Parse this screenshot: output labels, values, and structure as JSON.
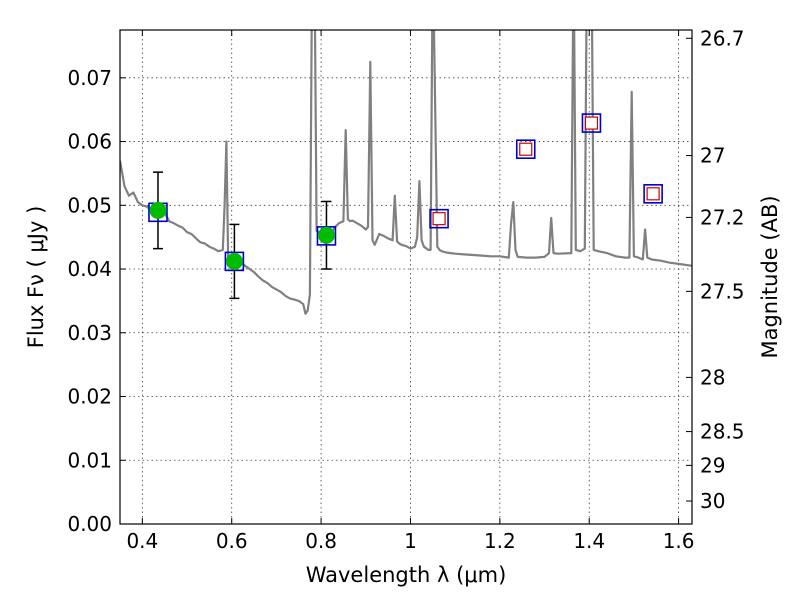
{
  "chart_data": {
    "type": "line",
    "title": "",
    "xlabel": "Wavelength  λ (μm)",
    "ylabel": "Flux  Fν  ( μJy )",
    "ylabel_right": "Magnitude (AB)",
    "xlim": [
      0.35,
      1.63
    ],
    "ylim": [
      0.0,
      0.0775
    ],
    "grid": true,
    "x_ticks": [
      0.4,
      0.6,
      0.8,
      1.0,
      1.2,
      1.4,
      1.6
    ],
    "x_tick_labels": [
      "0.4",
      "0.6",
      "0.8",
      "1",
      "1.2",
      "1.4",
      "1.6"
    ],
    "y_ticks": [
      0.0,
      0.01,
      0.02,
      0.03,
      0.04,
      0.05,
      0.06,
      0.07
    ],
    "y_tick_labels": [
      "0.00",
      "0.01",
      "0.02",
      "0.03",
      "0.04",
      "0.05",
      "0.06",
      "0.07"
    ],
    "right_axis_ticks": [
      {
        "label": "26.7",
        "flux": 0.0762
      },
      {
        "label": "27",
        "flux": 0.0578
      },
      {
        "label": "27.2",
        "flux": 0.0481
      },
      {
        "label": "27.5",
        "flux": 0.0365
      },
      {
        "label": "28",
        "flux": 0.023
      },
      {
        "label": "28.5",
        "flux": 0.0145
      },
      {
        "label": "29",
        "flux": 0.0092
      },
      {
        "label": "30",
        "flux": 0.0036
      }
    ],
    "colors": {
      "model": "#808080",
      "observed": "#00bb00",
      "model_box": "#0000cc",
      "upper_point": "#cc0000",
      "errorbar": "#000000"
    },
    "series": [
      {
        "kind": "line",
        "x": [
          0.35,
          0.36,
          0.37,
          0.38,
          0.39,
          0.4,
          0.41,
          0.42,
          0.43,
          0.44,
          0.45,
          0.46,
          0.47,
          0.48,
          0.49,
          0.5,
          0.51,
          0.52,
          0.53,
          0.54,
          0.55,
          0.56,
          0.57,
          0.58,
          0.584,
          0.588,
          0.592,
          0.6,
          0.61,
          0.62,
          0.63,
          0.64,
          0.65,
          0.66,
          0.67,
          0.68,
          0.69,
          0.7,
          0.71,
          0.72,
          0.73,
          0.74,
          0.75,
          0.76,
          0.765,
          0.77,
          0.775,
          0.78,
          0.785,
          0.79,
          0.8,
          0.81,
          0.82,
          0.83,
          0.84,
          0.85,
          0.855,
          0.86,
          0.865,
          0.87,
          0.88,
          0.89,
          0.9,
          0.905,
          0.91,
          0.915,
          0.92,
          0.93,
          0.94,
          0.95,
          0.96,
          0.965,
          0.97,
          0.975,
          0.98,
          0.99,
          1.0,
          1.01,
          1.015,
          1.02,
          1.025,
          1.03,
          1.04,
          1.045,
          1.05,
          1.06,
          1.065,
          1.07,
          1.08,
          1.09,
          1.1,
          1.12,
          1.14,
          1.16,
          1.18,
          1.2,
          1.22,
          1.225,
          1.23,
          1.235,
          1.24,
          1.26,
          1.28,
          1.3,
          1.31,
          1.315,
          1.32,
          1.33,
          1.36,
          1.365,
          1.37,
          1.38,
          1.39,
          1.395,
          1.4,
          1.405,
          1.41,
          1.42,
          1.44,
          1.46,
          1.48,
          1.49,
          1.495,
          1.5,
          1.51,
          1.52,
          1.525,
          1.53,
          1.54,
          1.56,
          1.58,
          1.6,
          1.63
        ],
        "y": [
          0.057,
          0.053,
          0.0515,
          0.052,
          0.0505,
          0.05,
          0.0498,
          0.0492,
          0.0495,
          0.0487,
          0.0488,
          0.0475,
          0.0472,
          0.0468,
          0.0465,
          0.0458,
          0.0455,
          0.0448,
          0.0442,
          0.044,
          0.0435,
          0.0432,
          0.0428,
          0.043,
          0.05,
          0.06,
          0.042,
          0.0415,
          0.0412,
          0.041,
          0.0405,
          0.04,
          0.0395,
          0.0388,
          0.0382,
          0.0378,
          0.0372,
          0.0368,
          0.0364,
          0.0358,
          0.0354,
          0.0352,
          0.035,
          0.0345,
          0.033,
          0.0335,
          0.036,
          0.09,
          0.09,
          0.046,
          0.0455,
          0.044,
          0.0452,
          0.0465,
          0.0472,
          0.0475,
          0.0618,
          0.0478,
          0.0475,
          0.0476,
          0.0472,
          0.0468,
          0.0462,
          0.0466,
          0.0725,
          0.0445,
          0.0438,
          0.0455,
          0.0452,
          0.0448,
          0.0445,
          0.0515,
          0.0443,
          0.044,
          0.0438,
          0.0436,
          0.0432,
          0.0435,
          0.045,
          0.0538,
          0.0445,
          0.0435,
          0.043,
          0.043,
          0.09,
          0.0435,
          0.043,
          0.0428,
          0.0426,
          0.0425,
          0.0424,
          0.0423,
          0.0422,
          0.0421,
          0.042,
          0.042,
          0.0418,
          0.047,
          0.0505,
          0.043,
          0.0419,
          0.0418,
          0.0418,
          0.0419,
          0.0425,
          0.048,
          0.0425,
          0.0424,
          0.0425,
          0.09,
          0.043,
          0.0428,
          0.0432,
          0.09,
          0.09,
          0.09,
          0.043,
          0.0428,
          0.0425,
          0.042,
          0.0418,
          0.0418,
          0.0678,
          0.042,
          0.0418,
          0.0415,
          0.0462,
          0.0418,
          0.0415,
          0.0413,
          0.041,
          0.0408,
          0.0405
        ]
      },
      {
        "kind": "scatter-errorbar",
        "x": [
          0.435,
          0.606,
          0.812
        ],
        "y": [
          0.0492,
          0.0412,
          0.0453
        ],
        "yerr": [
          0.006,
          0.0058,
          0.0053
        ]
      },
      {
        "kind": "model-box",
        "x": [
          0.435,
          0.606,
          0.812,
          1.064,
          1.258,
          1.405,
          1.543
        ],
        "y": [
          0.0489,
          0.0412,
          0.0452,
          0.0479,
          0.0588,
          0.0629,
          0.0518
        ]
      },
      {
        "kind": "upper-point",
        "x": [
          1.064,
          1.258,
          1.405,
          1.543
        ],
        "y": [
          0.0479,
          0.0588,
          0.0629,
          0.0518
        ]
      }
    ]
  }
}
